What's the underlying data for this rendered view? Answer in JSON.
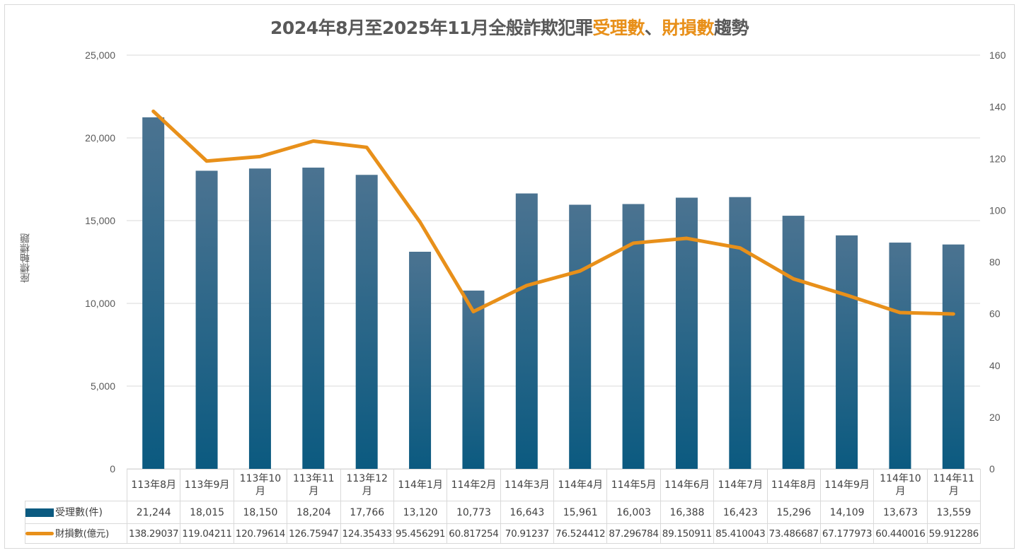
{
  "chart_data": {
    "type": "bar+line",
    "title_parts": [
      "2024年8月至2025年11月全般詐欺犯罪",
      "受理數",
      "、",
      "財損數",
      "趨勢"
    ],
    "ylabel": "座標軸標題",
    "categories": [
      "113年8月",
      "113年9月",
      "113年10月",
      "113年11月",
      "113年12月",
      "114年1月",
      "114年2月",
      "114年3月",
      "114年4月",
      "114年5月",
      "114年6月",
      "114年7月",
      "114年8月",
      "114年9月",
      "114年10月",
      "114年11月"
    ],
    "series": [
      {
        "name": "受理數(件)",
        "type": "bar",
        "axis": "left",
        "color": "#0b5a80",
        "values": [
          21244,
          18015,
          18150,
          18204,
          17766,
          13120,
          10773,
          16643,
          15961,
          16003,
          16388,
          16423,
          15296,
          14109,
          13673,
          13559
        ],
        "labels": [
          "21,244",
          "18,015",
          "18,150",
          "18,204",
          "17,766",
          "13,120",
          "10,773",
          "16,643",
          "15,961",
          "16,003",
          "16,388",
          "16,423",
          "15,296",
          "14,109",
          "13,673",
          "13,559"
        ]
      },
      {
        "name": "財損數(億元)",
        "type": "line",
        "axis": "right",
        "color": "#e8901a",
        "values": [
          138.29037,
          119.04211,
          120.79614,
          126.75947,
          124.35433,
          95.456291,
          60.817254,
          70.91237,
          76.524412,
          87.296784,
          89.150911,
          85.410043,
          73.486687,
          67.177973,
          60.440016,
          59.912286
        ],
        "labels": [
          "138.29037",
          "119.04211",
          "120.79614",
          "126.75947",
          "124.35433",
          "95.456291",
          "60.817254",
          "70.91237",
          "76.524412",
          "87.296784",
          "89.150911",
          "85.410043",
          "73.486687",
          "67.177973",
          "60.440016",
          "59.912286"
        ]
      }
    ],
    "left_axis": {
      "min": 0,
      "max": 25000,
      "ticks": [
        "0",
        "5,000",
        "10,000",
        "15,000",
        "20,000",
        "25,000"
      ]
    },
    "right_axis": {
      "min": 0,
      "max": 160,
      "ticks": [
        "0",
        "20",
        "40",
        "60",
        "80",
        "100",
        "120",
        "140",
        "160"
      ]
    },
    "grid": true,
    "legend": "data-table"
  }
}
